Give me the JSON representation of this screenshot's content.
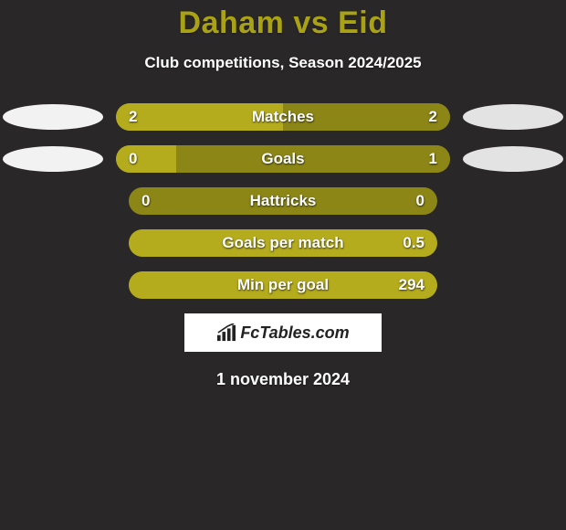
{
  "title": "Daham vs Eid",
  "subtitle": "Club competitions, Season 2024/2025",
  "date": "1 november 2024",
  "brand": "FcTables.com",
  "colors": {
    "title": "#aaa215",
    "bar_track": "#8c8616",
    "bar_highlight": "#b5ac1d",
    "bg": "#2a2728",
    "oval_left": "#f2f2f2",
    "oval_right": "#e3e3e3"
  },
  "rows": [
    {
      "label": "Matches",
      "left": "2",
      "right": "2",
      "left_fill_pct": 50,
      "right_fill_pct": 50,
      "fill_color": "#b5ac1d",
      "track_color": "#8c8616",
      "show_ovals": true
    },
    {
      "label": "Goals",
      "left": "0",
      "right": "1",
      "left_fill_pct": 18,
      "right_fill_pct": 82,
      "fill_color": "#b5ac1d",
      "track_color": "#8c8616",
      "show_ovals": true
    },
    {
      "label": "Hattricks",
      "left": "0",
      "right": "0",
      "left_fill_pct": 0,
      "right_fill_pct": 0,
      "fill_color": "#b5ac1d",
      "track_color": "#8c8616",
      "show_ovals": false
    },
    {
      "label": "Goals per match",
      "left": "",
      "right": "0.5",
      "left_fill_pct": 0,
      "right_fill_pct": 100,
      "fill_color": "#b5ac1d",
      "track_color": "#8c8616",
      "show_ovals": false
    },
    {
      "label": "Min per goal",
      "left": "",
      "right": "294",
      "left_fill_pct": 0,
      "right_fill_pct": 100,
      "fill_color": "#b5ac1d",
      "track_color": "#8c8616",
      "show_ovals": false
    }
  ],
  "typography": {
    "title_fontsize": 34,
    "subtitle_fontsize": 17,
    "bar_fontsize": 17,
    "date_fontsize": 18
  }
}
